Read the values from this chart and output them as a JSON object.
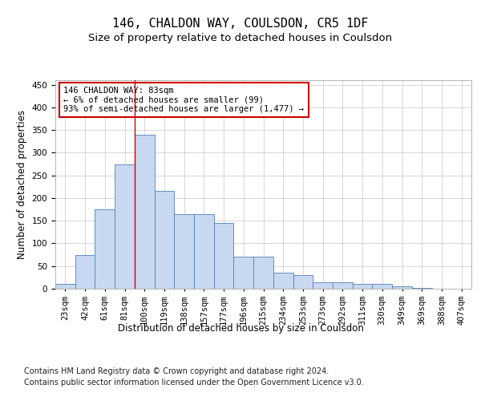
{
  "title": "146, CHALDON WAY, COULSDON, CR5 1DF",
  "subtitle": "Size of property relative to detached houses in Coulsdon",
  "xlabel": "Distribution of detached houses by size in Coulsdon",
  "ylabel": "Number of detached properties",
  "footer1": "Contains HM Land Registry data © Crown copyright and database right 2024.",
  "footer2": "Contains public sector information licensed under the Open Government Licence v3.0.",
  "bin_labels": [
    "23sqm",
    "42sqm",
    "61sqm",
    "81sqm",
    "100sqm",
    "119sqm",
    "138sqm",
    "157sqm",
    "177sqm",
    "196sqm",
    "215sqm",
    "234sqm",
    "253sqm",
    "273sqm",
    "292sqm",
    "311sqm",
    "330sqm",
    "349sqm",
    "369sqm",
    "388sqm",
    "407sqm"
  ],
  "bar_heights": [
    10,
    75,
    175,
    275,
    340,
    215,
    165,
    165,
    145,
    70,
    70,
    35,
    30,
    15,
    15,
    10,
    10,
    5,
    1,
    0,
    0
  ],
  "bar_color": "#c8d8f0",
  "bar_edgecolor": "#5080b8",
  "grid_color": "#c8c8c8",
  "vline_color": "#cc0000",
  "vline_position": 3.5,
  "annotation_text": "146 CHALDON WAY: 83sqm\n← 6% of detached houses are smaller (99)\n93% of semi-detached houses are larger (1,477) →",
  "annotation_box_edgecolor": "#cc0000",
  "ylim": [
    0,
    460
  ],
  "yticks": [
    0,
    50,
    100,
    150,
    200,
    250,
    300,
    350,
    400,
    450
  ],
  "title_fontsize": 11,
  "subtitle_fontsize": 9.5,
  "axis_label_fontsize": 8.5,
  "tick_fontsize": 7.5,
  "footer_fontsize": 7.0,
  "annot_fontsize": 7.5
}
